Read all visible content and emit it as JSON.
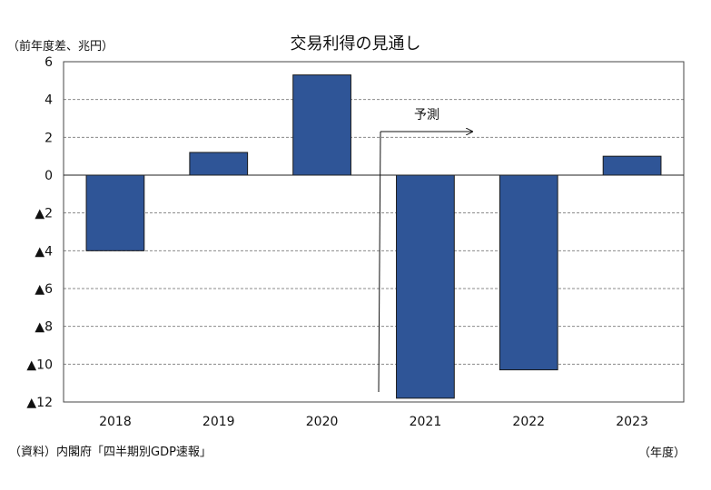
{
  "header": {
    "unit_label": "（前年度差、兆円）",
    "title": "交易利得の見通し"
  },
  "footer": {
    "source": "（資料）内閣府「四半期別GDP速報」",
    "x_unit": "（年度）"
  },
  "chart_data": {
    "type": "bar",
    "title": "交易利得の見通し",
    "ylabel": "（前年度差、兆円）",
    "xlabel": "（年度）",
    "categories": [
      "2018",
      "2019",
      "2020",
      "2021",
      "2022",
      "2023"
    ],
    "values": [
      -4.0,
      1.2,
      5.3,
      -11.8,
      -10.3,
      1.0
    ],
    "ylim": [
      -12,
      6
    ],
    "yticks": [
      6,
      4,
      2,
      0,
      -2,
      -4,
      -6,
      -8,
      -10,
      -12
    ],
    "ytick_labels": [
      "6",
      "4",
      "2",
      "0",
      "▲2",
      "▲4",
      "▲6",
      "▲8",
      "▲10",
      "▲12"
    ],
    "grid": true,
    "bar_color": "#2F5597",
    "annotation": {
      "text": "予測",
      "position": "between 2020 and 2021, arrow pointing right"
    }
  }
}
